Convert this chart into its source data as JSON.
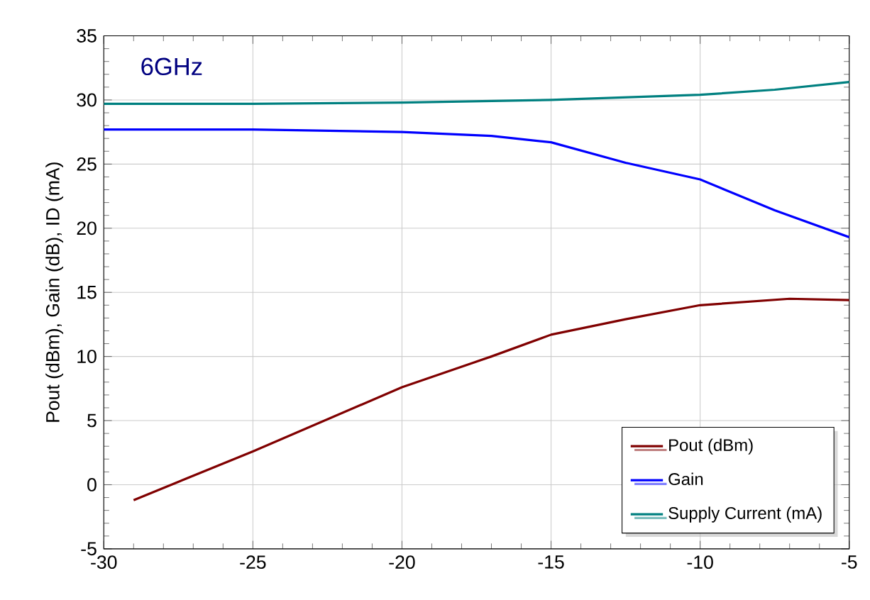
{
  "chart_data": {
    "type": "line",
    "ylabel": "Pout (dBm), Gain (dB),  ID (mA)",
    "annotations": [
      "6GHz"
    ],
    "xlim": [
      -30,
      -5
    ],
    "xticks": [
      -30,
      -25,
      -20,
      -15,
      -10,
      -5
    ],
    "ylim": [
      -5,
      35
    ],
    "yticks": [
      -5,
      0,
      5,
      10,
      15,
      20,
      25,
      30,
      35
    ],
    "grid": true,
    "legend": "bottom right",
    "series": [
      {
        "name": "Pout (dBm)",
        "color": "#800000",
        "x": [
          -29,
          -25,
          -20,
          -17,
          -15,
          -12.5,
          -10,
          -7,
          -5
        ],
        "values": [
          -1.2,
          2.6,
          7.6,
          10.0,
          11.7,
          12.9,
          14.0,
          14.5,
          14.4
        ]
      },
      {
        "name": "Gain",
        "color": "#0000ff",
        "x": [
          -30,
          -25,
          -20,
          -17,
          -15,
          -12.5,
          -10,
          -7.5,
          -5
        ],
        "values": [
          27.7,
          27.7,
          27.5,
          27.2,
          26.7,
          25.1,
          23.8,
          21.4,
          19.3
        ]
      },
      {
        "name": "Supply Current (mA)",
        "color": "#008080",
        "x": [
          -30,
          -25,
          -20,
          -15,
          -12.5,
          -10,
          -7.5,
          -5
        ],
        "values": [
          29.7,
          29.7,
          29.8,
          30.0,
          30.2,
          30.4,
          30.8,
          31.4
        ]
      }
    ]
  }
}
